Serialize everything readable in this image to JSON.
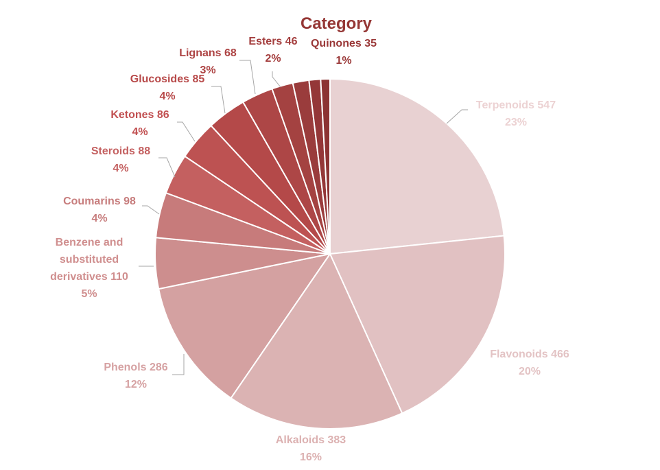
{
  "chart_data": {
    "type": "pie",
    "title": "Category",
    "title_color": "#953735",
    "slices": [
      {
        "label": "Terpenoids",
        "value": 547,
        "percent": "23%",
        "color": "#e8d1d2",
        "label_color": "#ecd2d3"
      },
      {
        "label": "Flavonoids",
        "value": 466,
        "percent": "20%",
        "color": "#e1c1c2",
        "label_color": "#e3c3c4"
      },
      {
        "label": "Alkaloids",
        "value": 383,
        "percent": "16%",
        "color": "#dbb3b3",
        "label_color": "#dcb1b1"
      },
      {
        "label": "Phenols",
        "value": 286,
        "percent": "12%",
        "color": "#d4a1a1",
        "label_color": "#d6a2a3"
      },
      {
        "label": "Benzene and substituted derivatives",
        "label_lines": [
          "Benzene and",
          "substituted",
          "derivatives 110"
        ],
        "value": 110,
        "percent": "5%",
        "color": "#cd8e8e",
        "label_color": "#d08f8f"
      },
      {
        "label": "Coumarins",
        "value": 98,
        "percent": "4%",
        "color": "#c77b7b",
        "label_color": "#c77d7d"
      },
      {
        "label": "Steroids",
        "value": 88,
        "percent": "4%",
        "color": "#c46060",
        "label_color": "#c46161"
      },
      {
        "label": "Ketones",
        "value": 86,
        "percent": "4%",
        "color": "#bd5252",
        "label_color": "#c14f50"
      },
      {
        "label": "Glucosides",
        "value": 85,
        "percent": "4%",
        "color": "#b44949",
        "label_color": "#b84a4a"
      },
      {
        "label": "Lignans",
        "value": 68,
        "percent": "3%",
        "color": "#ad4646",
        "label_color": "#ad4343"
      },
      {
        "label": "Esters",
        "value": 46,
        "percent": "2%",
        "color": "#a44241",
        "label_color": "#a43e3e"
      },
      {
        "label": "Quinones",
        "value": 35,
        "percent": "1%",
        "color": "#9a3c3c",
        "label_color": "#9a3838"
      },
      {
        "value": 25,
        "color": "#943738"
      },
      {
        "value": 20,
        "color": "#8c3333"
      }
    ]
  }
}
